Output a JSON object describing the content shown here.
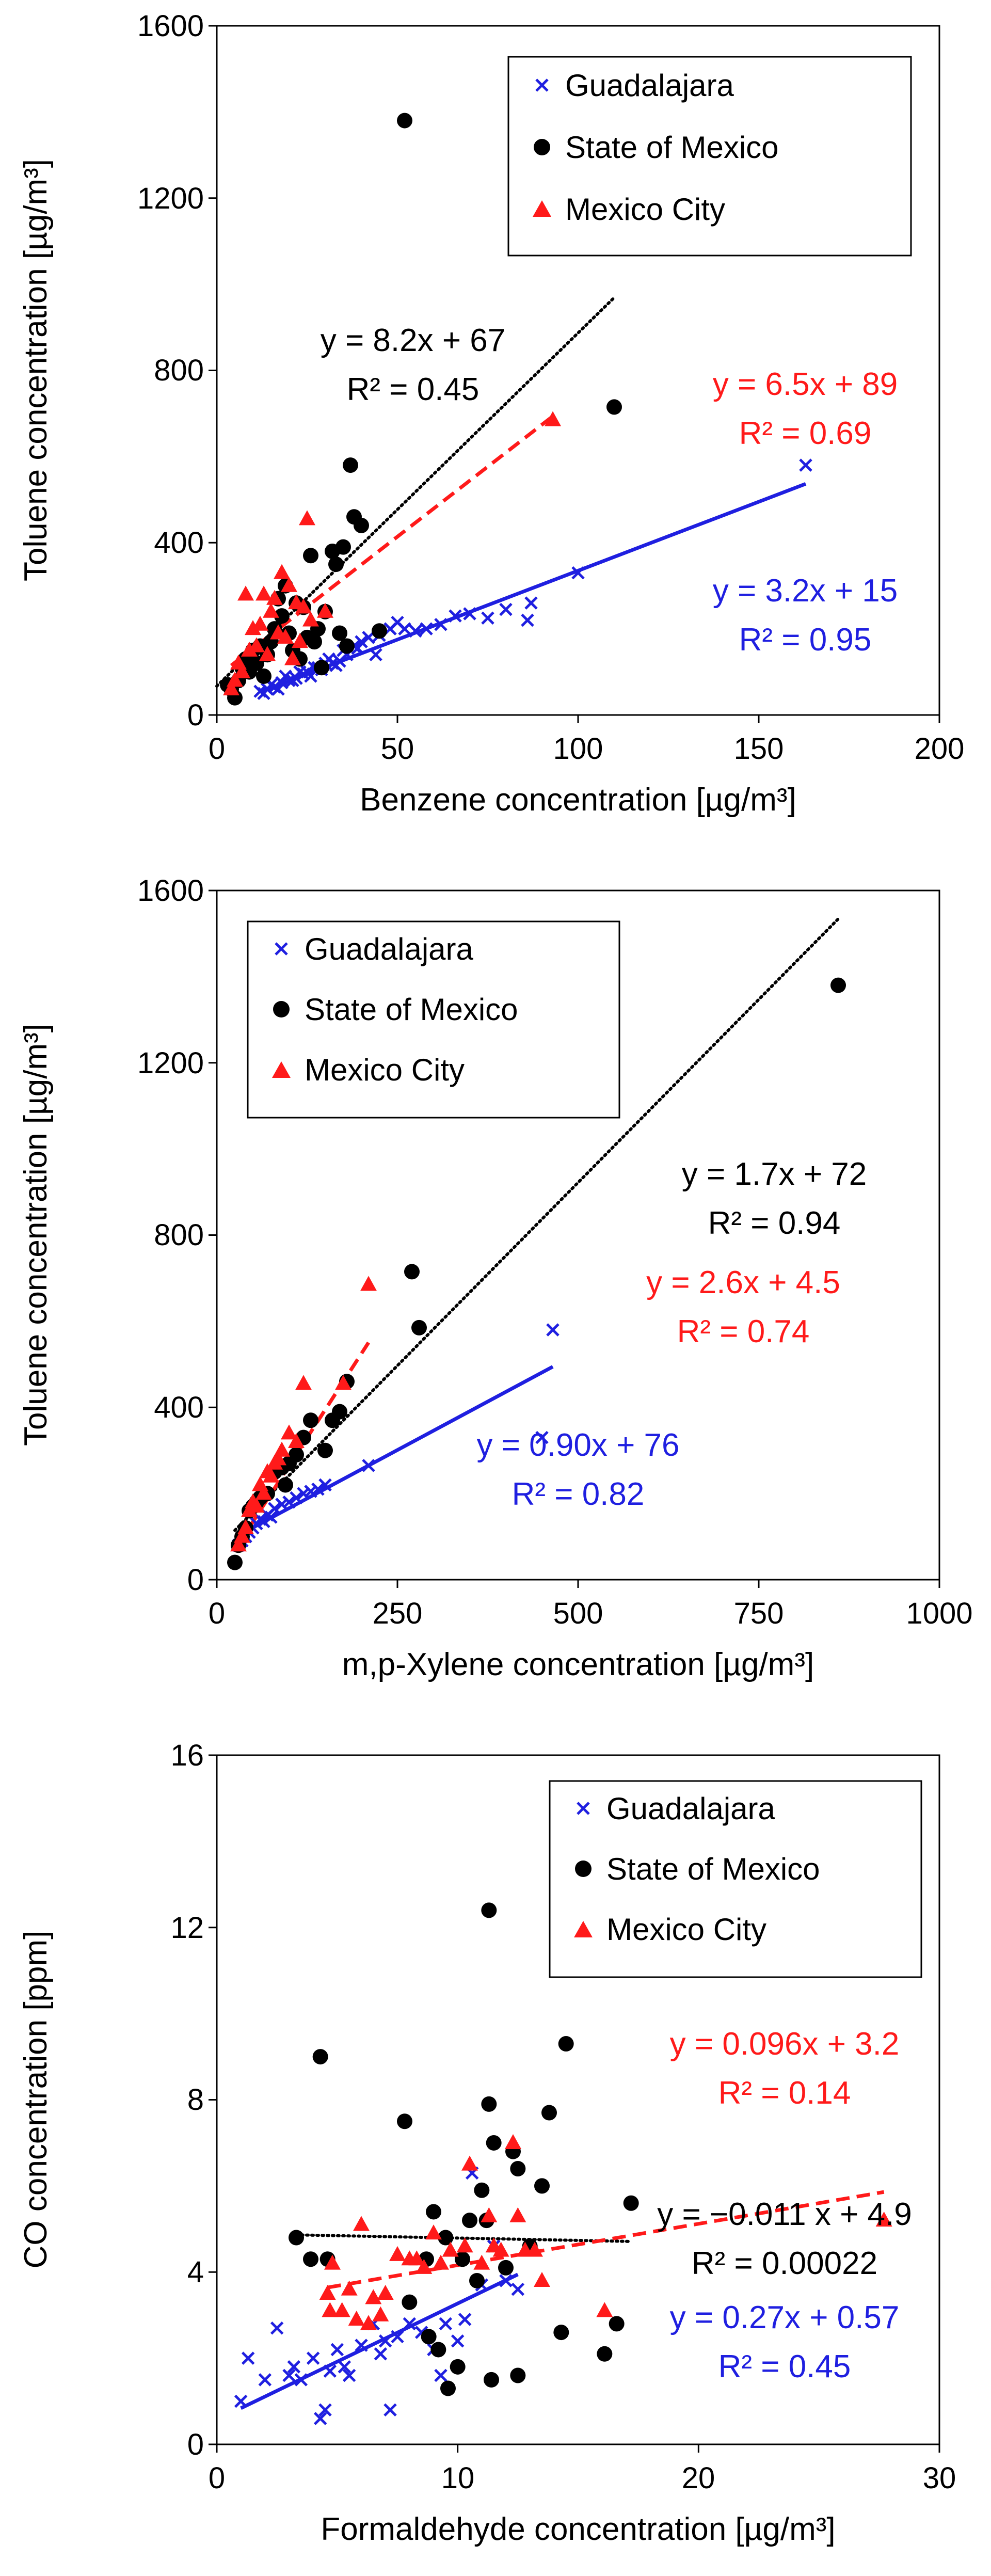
{
  "chart_data": [
    {
      "type": "scatter",
      "xlabel": "Benzene concentration [µg/m³]",
      "ylabel": "Toluene concentration [µg/m³]",
      "xlim": [
        0,
        200
      ],
      "ylim": [
        0,
        1600
      ],
      "xticks": [
        0,
        50,
        100,
        150,
        200
      ],
      "yticks": [
        0,
        400,
        800,
        1200,
        1600
      ],
      "xtick_labels": [
        "0",
        "50",
        "100",
        "150",
        "200"
      ],
      "ytick_labels": [
        "0",
        "400",
        "800",
        "1200",
        "1600"
      ],
      "legend": [
        "Guadalajara",
        "State of Mexico",
        "Mexico City"
      ],
      "series": [
        {
          "name": "Guadalajara",
          "marker": "x",
          "color": "#1f1fe0",
          "x": [
            12,
            14,
            16,
            18,
            20,
            22,
            24,
            25,
            28,
            30,
            32,
            34,
            36,
            38,
            40,
            42,
            44,
            45,
            48,
            50,
            52,
            55,
            58,
            62,
            66,
            70,
            75,
            80,
            86,
            87,
            100,
            163,
            15,
            19,
            23,
            27,
            31,
            35,
            26,
            21,
            17,
            13,
            29,
            33,
            39
          ],
          "y": [
            55,
            60,
            65,
            75,
            80,
            85,
            95,
            100,
            110,
            120,
            120,
            125,
            140,
            160,
            170,
            180,
            140,
            185,
            200,
            215,
            200,
            195,
            200,
            210,
            230,
            235,
            225,
            245,
            220,
            260,
            330,
            580,
            70,
            90,
            100,
            110,
            130,
            150,
            90,
            80,
            60,
            50,
            105,
            115,
            155
          ]
        },
        {
          "name": "State of Mexico",
          "marker": "circle",
          "color": "#000000",
          "x": [
            52,
            40,
            37,
            38,
            35,
            45,
            33,
            26,
            30,
            19,
            17,
            22,
            24,
            18,
            28,
            20,
            25,
            15,
            12,
            10,
            8,
            7,
            5,
            4,
            6,
            9,
            11,
            14,
            16,
            21,
            23,
            27,
            32,
            34,
            36,
            110,
            3,
            13,
            29
          ],
          "y": [
            1380,
            440,
            580,
            460,
            390,
            195,
            350,
            370,
            240,
            300,
            270,
            260,
            250,
            230,
            200,
            190,
            180,
            170,
            160,
            150,
            130,
            110,
            40,
            60,
            80,
            100,
            120,
            140,
            200,
            150,
            130,
            170,
            380,
            190,
            160,
            715,
            70,
            90,
            110
          ]
        },
        {
          "name": "Mexico City",
          "marker": "triangle",
          "color": "#ff1a1a",
          "x": [
            93,
            25,
            8,
            13,
            18,
            20,
            15,
            16,
            22,
            24,
            10,
            12,
            17,
            19,
            23,
            9,
            11,
            14,
            21,
            6,
            7,
            5,
            4,
            26,
            30
          ],
          "y": [
            685,
            455,
            280,
            280,
            330,
            300,
            240,
            270,
            260,
            250,
            200,
            210,
            190,
            180,
            170,
            150,
            160,
            140,
            130,
            120,
            100,
            80,
            60,
            220,
            240
          ]
        }
      ],
      "fits": [
        {
          "series": "State of Mexico",
          "slope": 8.2,
          "intercept": 67,
          "x_range": [
            0,
            110
          ],
          "style": "dotted",
          "color": "#000000",
          "equation": "y = 8.2x + 67",
          "r2": "R² = 0.45"
        },
        {
          "series": "Mexico City",
          "slope": 6.5,
          "intercept": 89,
          "x_range": [
            4,
            93
          ],
          "style": "dashed",
          "color": "#ff1a1a",
          "equation": "y = 6.5x + 89",
          "r2": "R² = 0.69"
        },
        {
          "series": "Guadalajara",
          "slope": 3.2,
          "intercept": 15,
          "x_range": [
            12,
            163
          ],
          "style": "solid",
          "color": "#1f1fe0",
          "equation": "y = 3.2x + 15",
          "r2": "R² = 0.95"
        }
      ]
    },
    {
      "type": "scatter",
      "xlabel": "m,p-Xylene concentration [µg/m³]",
      "ylabel": "Toluene concentration [µg/m³]",
      "xlim": [
        0,
        1000
      ],
      "ylim": [
        0,
        1600
      ],
      "xticks": [
        0,
        250,
        500,
        750,
        1000
      ],
      "yticks": [
        0,
        400,
        800,
        1200,
        1600
      ],
      "xtick_labels": [
        "0",
        "250",
        "500",
        "750",
        "1000"
      ],
      "ytick_labels": [
        "0",
        "400",
        "800",
        "1200",
        "1600"
      ],
      "legend": [
        "Guadalajara",
        "State of Mexico",
        "Mexico City"
      ],
      "series": [
        {
          "name": "Guadalajara",
          "marker": "x",
          "color": "#1f1fe0",
          "x": [
            465,
            450,
            210,
            150,
            130,
            110,
            90,
            80,
            70,
            60,
            55,
            50,
            45,
            40,
            35,
            30,
            100,
            120,
            140,
            75,
            65
          ],
          "y": [
            580,
            330,
            265,
            220,
            205,
            190,
            175,
            165,
            150,
            140,
            130,
            120,
            110,
            100,
            90,
            80,
            180,
            200,
            210,
            145,
            135
          ]
        },
        {
          "name": "State of Mexico",
          "marker": "circle",
          "color": "#000000",
          "x": [
            860,
            270,
            280,
            180,
            170,
            160,
            130,
            120,
            110,
            100,
            90,
            80,
            70,
            60,
            55,
            50,
            45,
            40,
            35,
            30,
            25,
            150,
            95
          ],
          "y": [
            1380,
            715,
            585,
            460,
            390,
            370,
            370,
            330,
            290,
            270,
            260,
            250,
            200,
            190,
            180,
            170,
            160,
            120,
            100,
            80,
            40,
            300,
            220
          ]
        },
        {
          "name": "Mexico City",
          "marker": "triangle",
          "color": "#ff1a1a",
          "x": [
            210,
            175,
            120,
            100,
            90,
            80,
            70,
            60,
            50,
            45,
            40,
            35,
            30,
            85,
            75,
            65,
            55,
            110
          ],
          "y": [
            685,
            455,
            455,
            340,
            300,
            270,
            250,
            220,
            180,
            160,
            120,
            100,
            80,
            280,
            240,
            200,
            170,
            320
          ]
        }
      ],
      "fits": [
        {
          "series": "State of Mexico",
          "slope": 1.7,
          "intercept": 72,
          "x_range": [
            25,
            860
          ],
          "style": "dotted",
          "color": "#000000",
          "equation": "y = 1.7x + 72",
          "r2": "R² = 0.94"
        },
        {
          "series": "Mexico City",
          "slope": 2.6,
          "intercept": 4.5,
          "x_range": [
            30,
            210
          ],
          "style": "dashed",
          "color": "#ff1a1a",
          "equation": "y = 2.6x + 4.5",
          "r2": "R² = 0.74"
        },
        {
          "series": "Guadalajara",
          "slope": 0.9,
          "intercept": 76,
          "x_range": [
            30,
            465
          ],
          "style": "solid",
          "color": "#1f1fe0",
          "equation": "y = 0.90x + 76",
          "r2": "R² = 0.82"
        }
      ]
    },
    {
      "type": "scatter",
      "xlabel": "Formaldehyde concentration [µg/m³]",
      "ylabel": "CO concentration [ppm]",
      "xlim": [
        0,
        30
      ],
      "ylim": [
        0,
        16
      ],
      "xticks": [
        0,
        10,
        20,
        30
      ],
      "yticks": [
        0,
        4,
        8,
        12,
        16
      ],
      "xtick_labels": [
        "0",
        "10",
        "20",
        "30"
      ],
      "ytick_labels": [
        "0",
        "4",
        "8",
        "12",
        "16"
      ],
      "legend": [
        "Guadalajara",
        "State of Mexico",
        "Mexico City"
      ],
      "series": [
        {
          "name": "Guadalajara",
          "marker": "x",
          "color": "#1f1fe0",
          "x": [
            1,
            1.3,
            2.5,
            3.2,
            3.5,
            4,
            4.3,
            4.5,
            4.7,
            5,
            5.3,
            5.5,
            6,
            6.5,
            7,
            7.2,
            7.5,
            8,
            8.5,
            9,
            9.3,
            9.5,
            10,
            10.3,
            10.6,
            11,
            11.5,
            12,
            12.5,
            2,
            3,
            6.8
          ],
          "y": [
            1,
            2,
            2.7,
            1.8,
            1.5,
            2,
            0.6,
            0.8,
            1.7,
            2.2,
            1.8,
            1.6,
            2.3,
            2.8,
            2.4,
            0.8,
            2.5,
            2.8,
            2.6,
            2.2,
            1.6,
            2.8,
            2.4,
            2.9,
            6.3,
            3.7,
            4.6,
            3.8,
            3.6,
            1.5,
            1.6,
            2.1
          ]
        },
        {
          "name": "State of Mexico",
          "marker": "circle",
          "color": "#000000",
          "x": [
            11.3,
            4.3,
            14.5,
            11.3,
            13.8,
            7.8,
            11.5,
            12.3,
            12.5,
            11,
            9,
            10.5,
            11.2,
            13.5,
            17.2,
            8,
            8.7,
            9.5,
            10.2,
            10.8,
            12,
            13,
            3.3,
            3.9,
            4.6,
            8.8,
            9.2,
            9.6,
            10,
            14.3,
            16.1,
            16.6,
            12.5,
            11.4
          ],
          "y": [
            12.4,
            9,
            9.3,
            7.9,
            7.7,
            7.5,
            7,
            6.8,
            6.4,
            5.9,
            5.4,
            5.2,
            5.2,
            6,
            5.6,
            3.3,
            4.3,
            4.8,
            4.3,
            3.8,
            4.1,
            4.6,
            4.8,
            4.3,
            4.3,
            2.5,
            2.2,
            1.3,
            1.8,
            2.6,
            2.1,
            2.8,
            1.6,
            1.5
          ]
        },
        {
          "name": "Mexico City",
          "marker": "triangle",
          "color": "#ff1a1a",
          "x": [
            27.7,
            12.3,
            10.5,
            11.3,
            6,
            4.8,
            4.6,
            5.5,
            7,
            7.5,
            8,
            9,
            9.7,
            11.5,
            12.8,
            13.2,
            13.5,
            16.1,
            4.7,
            5.2,
            5.8,
            6.3,
            6.8,
            8.3,
            8.6,
            9.3,
            10.3,
            11,
            11.8,
            12.5,
            6.5
          ],
          "y": [
            5.2,
            7,
            6.5,
            5.3,
            5.1,
            4.2,
            3.5,
            3.6,
            3.5,
            4.4,
            4.3,
            4.9,
            4.5,
            4.6,
            4.5,
            4.5,
            3.8,
            3.1,
            3.1,
            3.1,
            2.9,
            2.8,
            3,
            4.3,
            4.1,
            4.2,
            4.6,
            4.2,
            4.5,
            5.3,
            3.4
          ]
        }
      ],
      "fits": [
        {
          "series": "State of Mexico",
          "slope": -0.011,
          "intercept": 4.9,
          "x_range": [
            3.3,
            17.2
          ],
          "style": "dotted",
          "color": "#000000",
          "equation": "y = −0.011 x + 4.9",
          "r2": "R² = 0.00022"
        },
        {
          "series": "Mexico City",
          "slope": 0.096,
          "intercept": 3.2,
          "x_range": [
            4.6,
            27.7
          ],
          "style": "dashed",
          "color": "#ff1a1a",
          "equation": "y = 0.096x + 3.2",
          "r2": "R² = 0.14"
        },
        {
          "series": "Guadalajara",
          "slope": 0.27,
          "intercept": 0.57,
          "x_range": [
            1,
            12.5
          ],
          "style": "solid",
          "color": "#1f1fe0",
          "equation": "y = 0.27x + 0.57",
          "r2": "R² = 0.45"
        }
      ]
    }
  ]
}
